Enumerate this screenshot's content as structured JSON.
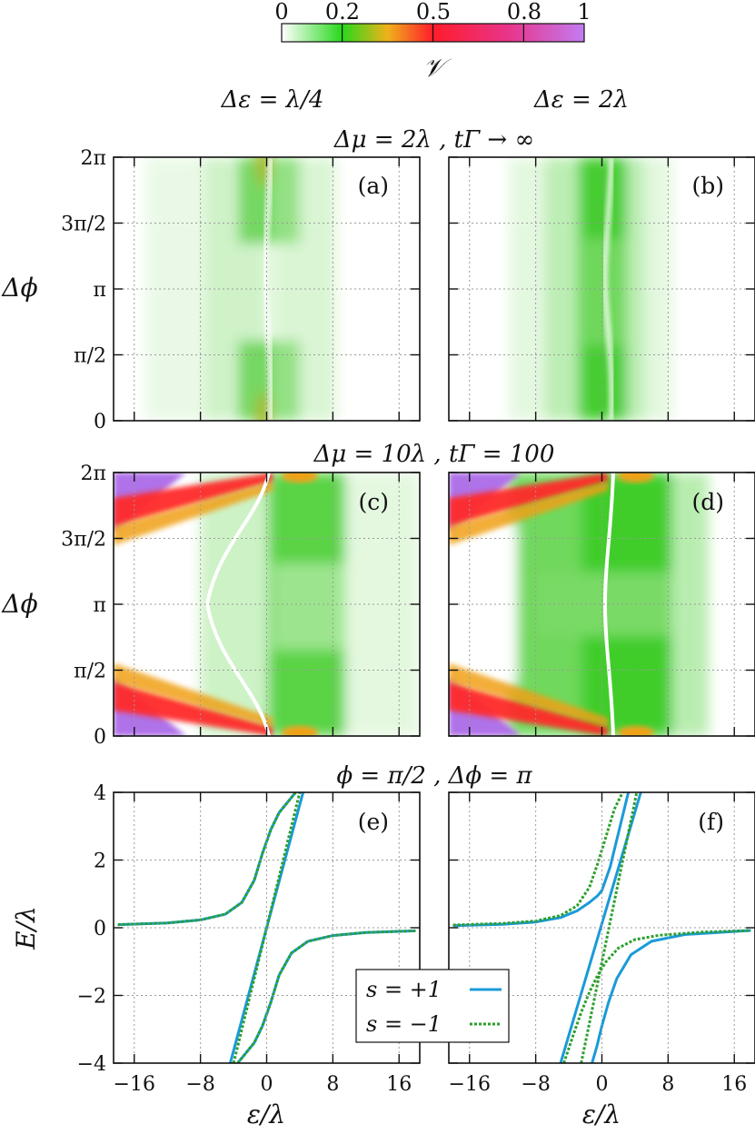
{
  "colorbar": {
    "ticks": [
      "0",
      "0.2",
      "0.5",
      "0.8",
      "1"
    ],
    "tick_values": [
      0,
      0.2,
      0.5,
      0.8,
      1
    ],
    "label": "𝒱",
    "stops": [
      {
        "v": 0,
        "color": "#ffffff"
      },
      {
        "v": 0.2,
        "color": "#27d81b"
      },
      {
        "v": 0.35,
        "color": "#f0b21a"
      },
      {
        "v": 0.5,
        "color": "#ff1c2b"
      },
      {
        "v": 0.75,
        "color": "#e8348a"
      },
      {
        "v": 1,
        "color": "#c27cf2"
      }
    ]
  },
  "column_titles": [
    "Δε = λ/4",
    "Δε = 2λ"
  ],
  "row_titles": [
    "Δμ = 2λ , tΓ → ∞",
    "Δμ = 10λ , tΓ = 100",
    "ϕ = π/2 , Δϕ = π"
  ],
  "panel_letters": [
    "(a)",
    "(b)",
    "(c)",
    "(d)",
    "(e)",
    "(f)"
  ],
  "y_ticks_phase": [
    "2π",
    "3π/2",
    "π",
    "π/2",
    "0"
  ],
  "y_label_phase": "Δϕ",
  "y_ticks_energy": [
    "4",
    "2",
    "0",
    "−2",
    "−4"
  ],
  "y_label_energy": "E/λ",
  "x_ticks": [
    "−16",
    "−8",
    "0",
    "8",
    "16"
  ],
  "x_label": "ε/λ",
  "legend": [
    {
      "label": "s = +1",
      "style": "solid",
      "color": "#1a9ad8"
    },
    {
      "label": "s = −1",
      "style": "dashed",
      "color": "#2ca02c"
    }
  ],
  "chart_data": [
    {
      "type": "heatmap",
      "panel": "(a)",
      "x_range": [
        -18.5,
        18.5
      ],
      "y_range": [
        0,
        6.2832
      ],
      "xlabel": "",
      "ylabel": "Δϕ",
      "description_params": {
        "delta_eps": 0.25,
        "delta_mu": 2,
        "t_gamma": "inf"
      }
    },
    {
      "type": "heatmap",
      "panel": "(b)",
      "x_range": [
        -18.5,
        18.5
      ],
      "y_range": [
        0,
        6.2832
      ],
      "xlabel": "",
      "ylabel": "",
      "description_params": {
        "delta_eps": 2,
        "delta_mu": 2,
        "t_gamma": "inf"
      }
    },
    {
      "type": "heatmap",
      "panel": "(c)",
      "x_range": [
        -18.5,
        18.5
      ],
      "y_range": [
        0,
        6.2832
      ],
      "xlabel": "",
      "ylabel": "Δϕ",
      "description_params": {
        "delta_eps": 0.25,
        "delta_mu": 10,
        "t_gamma": 100
      }
    },
    {
      "type": "heatmap",
      "panel": "(d)",
      "x_range": [
        -18.5,
        18.5
      ],
      "y_range": [
        0,
        6.2832
      ],
      "xlabel": "",
      "ylabel": "",
      "description_params": {
        "delta_eps": 2,
        "delta_mu": 10,
        "t_gamma": 100
      }
    },
    {
      "type": "line",
      "panel": "(e)",
      "x_range": [
        -18.5,
        18.5
      ],
      "y_range": [
        -4,
        4
      ],
      "xlabel": "ε/λ",
      "ylabel": "E/λ",
      "series": [
        {
          "name": "s = +1",
          "curves": [
            {
              "x": [
                -18,
                -12,
                -8,
                -5,
                -3,
                -1.5,
                -0.5,
                0.5,
                1.5,
                2.5,
                3.5
              ],
              "y": [
                0.09,
                0.14,
                0.23,
                0.4,
                0.75,
                1.4,
                2.2,
                2.9,
                3.4,
                3.7,
                4.0
              ]
            },
            {
              "x": [
                -3.5,
                -2.5,
                -1.5,
                -0.5,
                0.5,
                1.5,
                3,
                5,
                8,
                12,
                18
              ],
              "y": [
                -4.0,
                -3.7,
                -3.4,
                -2.9,
                -2.2,
                -1.4,
                -0.75,
                -0.4,
                -0.23,
                -0.14,
                -0.09
              ]
            },
            {
              "x": [
                -4.4,
                4.4
              ],
              "y": [
                -4,
                4
              ]
            }
          ]
        },
        {
          "name": "s = −1",
          "curves": [
            {
              "x": [
                -18,
                -12,
                -8,
                -5,
                -3,
                -1.5,
                -0.5,
                0.5,
                1.5,
                2.5,
                3.5
              ],
              "y": [
                0.09,
                0.14,
                0.23,
                0.4,
                0.75,
                1.4,
                2.2,
                2.9,
                3.4,
                3.7,
                4.0
              ]
            },
            {
              "x": [
                -3.5,
                -2.5,
                -1.5,
                -0.5,
                0.5,
                1.5,
                3,
                5,
                8,
                12,
                18
              ],
              "y": [
                -4.0,
                -3.7,
                -3.4,
                -2.9,
                -2.2,
                -1.4,
                -0.75,
                -0.4,
                -0.23,
                -0.14,
                -0.09
              ]
            },
            {
              "x": [
                -4.0,
                4.0
              ],
              "y": [
                -4,
                4
              ]
            }
          ]
        }
      ]
    },
    {
      "type": "line",
      "panel": "(f)",
      "x_range": [
        -18.5,
        18.5
      ],
      "y_range": [
        -4,
        4
      ],
      "xlabel": "ε/λ",
      "ylabel": "",
      "series": [
        {
          "name": "s = +1",
          "curves": [
            {
              "x": [
                -18,
                -12,
                -8,
                -5,
                -3,
                -1.5,
                -0.5,
                0,
                1,
                2.2,
                3.2
              ],
              "y": [
                0.06,
                0.1,
                0.17,
                0.3,
                0.5,
                0.75,
                0.95,
                1.1,
                1.8,
                3.0,
                4.0
              ]
            },
            {
              "x": [
                -1.2,
                -0.6,
                0,
                0.8,
                1.8,
                3.5,
                6,
                10,
                18
              ],
              "y": [
                -4.0,
                -3.5,
                -2.9,
                -2.2,
                -1.5,
                -0.8,
                -0.4,
                -0.2,
                -0.08
              ]
            },
            {
              "x": [
                -5.0,
                4.7
              ],
              "y": [
                -4,
                4
              ]
            }
          ]
        },
        {
          "name": "s = −1",
          "curves": [
            {
              "x": [
                -18,
                -12,
                -8,
                -5,
                -3,
                -1.5,
                -0.5,
                0.5,
                1.5,
                2.5
              ],
              "y": [
                0.08,
                0.13,
                0.2,
                0.36,
                0.65,
                1.2,
                1.9,
                2.7,
                3.5,
                4.0
              ]
            },
            {
              "x": [
                -4.6,
                -3.5,
                -2.5,
                -1.5,
                -0.5,
                0.5,
                2,
                4,
                7,
                12,
                18
              ],
              "y": [
                -4.0,
                -3.2,
                -2.5,
                -1.9,
                -1.4,
                -1.0,
                -0.6,
                -0.35,
                -0.22,
                -0.13,
                -0.08
              ]
            },
            {
              "x": [
                -2.5,
                4.2
              ],
              "y": [
                -4,
                4
              ]
            }
          ]
        }
      ]
    }
  ]
}
